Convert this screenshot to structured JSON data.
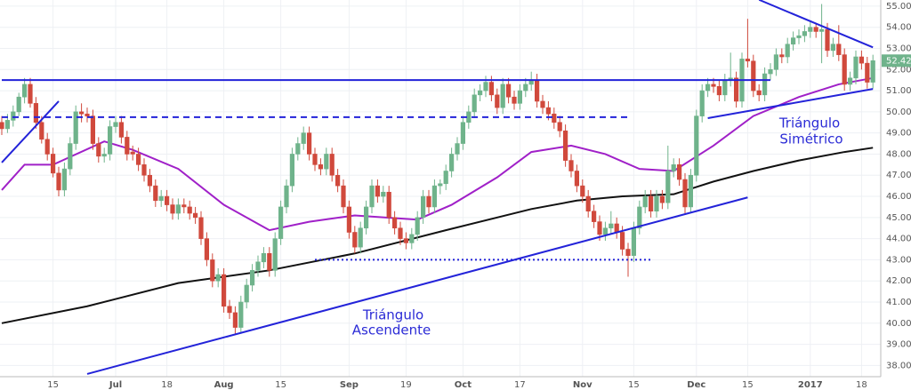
{
  "chart_data": {
    "type": "candlestick",
    "categories": [
      null,
      null,
      null,
      null,
      null,
      null,
      null,
      null,
      null,
      "15",
      null,
      null,
      null,
      null,
      null,
      null,
      null,
      null,
      null,
      null,
      "Jul",
      null,
      null,
      null,
      null,
      null,
      null,
      null,
      null,
      "18",
      null,
      null,
      null,
      null,
      null,
      null,
      null,
      null,
      null,
      "Aug",
      null,
      null,
      null,
      null,
      null,
      null,
      null,
      null,
      null,
      "15",
      null,
      null,
      null,
      null,
      null,
      null,
      null,
      null,
      null,
      null,
      null,
      "Sep",
      null,
      null,
      null,
      null,
      null,
      null,
      null,
      null,
      null,
      "19",
      null,
      null,
      null,
      null,
      null,
      null,
      null,
      null,
      null,
      "Oct",
      null,
      null,
      null,
      null,
      null,
      null,
      null,
      null,
      null,
      "17",
      null,
      null,
      null,
      null,
      null,
      null,
      null,
      null,
      null,
      null,
      "Nov",
      null,
      null,
      null,
      null,
      null,
      null,
      null,
      null,
      "15",
      null,
      null,
      null,
      null,
      null,
      null,
      null,
      null,
      null,
      null,
      "Dec",
      null,
      null,
      null,
      null,
      null,
      null,
      null,
      null,
      "15",
      null,
      null,
      null,
      null,
      null,
      null,
      null,
      null,
      null,
      null,
      "2017",
      null,
      null,
      null,
      null,
      null,
      null,
      null,
      null,
      "18",
      null,
      null
    ],
    "open": [
      49.5,
      49.2,
      49.6,
      50,
      50.7,
      51.3,
      50.4,
      49.5,
      48.7,
      48,
      47.1,
      46.3,
      47.3,
      48.5,
      50,
      49.9,
      49.8,
      48.5,
      47.9,
      48,
      49.3,
      49.5,
      48.8,
      48.1,
      48,
      47.5,
      47,
      46.5,
      45.8,
      46,
      45.6,
      45.2,
      45.6,
      45.5,
      45.2,
      45,
      44,
      43,
      42,
      42.3,
      40.8,
      40.5,
      39.8,
      41,
      41.8,
      42.5,
      42.9,
      43.3,
      42.5,
      44,
      45.5,
      46.5,
      48,
      48.5,
      49,
      48,
      47.5,
      47.3,
      48,
      47,
      46.5,
      45.5,
      44.3,
      43.6,
      44.5,
      45.5,
      46.5,
      46,
      46.2,
      45,
      44.5,
      44,
      43.8,
      44.2,
      45,
      46,
      45.5,
      46.5,
      46.6,
      47.2,
      48,
      48.5,
      49.5,
      50,
      50.8,
      51,
      51.4,
      50.8,
      50.2,
      51.3,
      50.7,
      50.4,
      51,
      51.3,
      51.5,
      50.5,
      50.2,
      49.9,
      49.5,
      49.1,
      47.7,
      47.2,
      46.5,
      46,
      45.3,
      44.8,
      44.2,
      44.5,
      44.7,
      44.3,
      43.5,
      43.2,
      44.5,
      45.5,
      46,
      45.3,
      46,
      45.7,
      47.2,
      47.5,
      46.8,
      45.5,
      47,
      49.8,
      51,
      51.3,
      51.2,
      50.8,
      51.5,
      51.6,
      50.5,
      52.5,
      52.4,
      51,
      50.8,
      51.8,
      52,
      52.7,
      52.6,
      53.2,
      53.5,
      53.6,
      53.8,
      54,
      53.8,
      53.9,
      52.9,
      53.2,
      52.7,
      51.3,
      51.6,
      52.6,
      52.3,
      51.4
    ],
    "high": [
      49.8,
      49.9,
      50.3,
      50.9,
      51.6,
      51.6,
      50.7,
      49.8,
      49,
      48.3,
      47.4,
      47.6,
      48.8,
      50.3,
      50.4,
      50.2,
      50.1,
      48.8,
      48.3,
      49.6,
      49.8,
      49.8,
      49.1,
      48.4,
      48.3,
      47.8,
      47.3,
      46.8,
      46.3,
      46.3,
      45.9,
      45.9,
      45.9,
      45.8,
      45.5,
      45.3,
      44.3,
      43.3,
      42.6,
      42.6,
      41.1,
      40.8,
      41.3,
      42.1,
      42.8,
      43.2,
      43.6,
      43.6,
      44.3,
      45.8,
      46.8,
      48.3,
      48.8,
      49.3,
      49.3,
      48.3,
      47.8,
      48.3,
      48.3,
      47.3,
      46.8,
      45.8,
      44.6,
      44.8,
      45.8,
      46.8,
      46.8,
      46.5,
      46.5,
      45.3,
      44.8,
      44.3,
      44.5,
      45.3,
      46.3,
      46.3,
      46.8,
      46.8,
      47.5,
      48.3,
      48.8,
      49.8,
      50.3,
      51.1,
      51.3,
      51.7,
      51.7,
      51.1,
      51.6,
      51.6,
      51,
      51.3,
      51.6,
      51.9,
      51.8,
      50.8,
      50.5,
      50.2,
      49.8,
      49.4,
      48,
      47.5,
      46.8,
      46.3,
      45.6,
      45.1,
      44.8,
      45.3,
      45,
      44.6,
      43.8,
      44.8,
      45.8,
      46.3,
      46.3,
      46.3,
      46.3,
      48.4,
      47.8,
      47.8,
      47.1,
      47.3,
      50.1,
      51.3,
      51.6,
      51.6,
      51.5,
      51.8,
      52.8,
      51.9,
      52.8,
      54.4,
      52.7,
      51.3,
      52.1,
      52.3,
      53,
      53,
      53.5,
      53.8,
      53.9,
      54.1,
      54.3,
      54.2,
      55.1,
      54.2,
      53.5,
      54.1,
      53,
      51.9,
      52.9,
      52.9,
      52.6,
      52.7
    ],
    "low": [
      48.9,
      49,
      49.3,
      49.8,
      50.4,
      50.2,
      49.2,
      48.5,
      47.7,
      46.9,
      46,
      46,
      47,
      48.2,
      49.5,
      49.5,
      48.2,
      47.6,
      47.6,
      47.7,
      49,
      48.5,
      47.7,
      47.7,
      47.2,
      46.7,
      46.2,
      45.5,
      45.5,
      45.3,
      44.9,
      44.9,
      45.2,
      44.9,
      44.7,
      43.7,
      42.7,
      41.7,
      41.7,
      40.5,
      40.2,
      39.5,
      39.5,
      40.7,
      41.5,
      42.2,
      42.6,
      42.2,
      42.2,
      43.7,
      45.2,
      46.2,
      47.7,
      48.2,
      47.7,
      47.2,
      47,
      47,
      46.7,
      46.2,
      45.2,
      44,
      43.3,
      43.3,
      44.2,
      45.2,
      45.7,
      45.7,
      44.7,
      44.2,
      43.7,
      43.5,
      43.5,
      43.9,
      44.7,
      45.2,
      45.2,
      46.1,
      46.3,
      46.9,
      47.7,
      48.2,
      49.2,
      49.7,
      50.5,
      50.7,
      50.5,
      49.9,
      49.9,
      50.4,
      50.1,
      50.1,
      50.7,
      51,
      50.2,
      49.9,
      49.6,
      49.2,
      48.8,
      47.4,
      46.9,
      46.2,
      45.7,
      45,
      44.5,
      43.9,
      43.9,
      44.2,
      44,
      43.2,
      42.2,
      42.9,
      44.2,
      45.2,
      45,
      45,
      45.4,
      45.4,
      46.9,
      46.5,
      45.2,
      45.2,
      46.7,
      49.5,
      50.7,
      50.9,
      50.5,
      50.5,
      51.2,
      50.2,
      50.2,
      52.1,
      50.7,
      50.5,
      50.5,
      51.5,
      51.7,
      52.3,
      52.3,
      52.9,
      53.2,
      53.3,
      53.5,
      53.5,
      52.3,
      52.6,
      52.6,
      52.4,
      51,
      51,
      51.3,
      52,
      51.1,
      51.1
    ],
    "close": [
      49.2,
      49.6,
      50,
      50.7,
      51.3,
      50.4,
      49.5,
      48.7,
      48,
      47.1,
      46.3,
      47.3,
      48.5,
      50,
      49.9,
      49.8,
      48.5,
      47.9,
      48,
      49.3,
      49.5,
      48.8,
      48,
      48,
      47.5,
      47,
      46.5,
      45.8,
      46,
      45.6,
      45.2,
      45.6,
      45.5,
      45.2,
      45,
      44,
      43,
      42,
      42.3,
      40.8,
      40.5,
      39.8,
      41,
      41.8,
      42.5,
      42.9,
      43.3,
      42.5,
      44,
      45.5,
      46.5,
      48,
      48.5,
      49,
      48,
      47.5,
      47.3,
      48,
      47,
      46.5,
      45.5,
      44.3,
      43.6,
      44.5,
      45.5,
      46.5,
      46,
      46.2,
      45,
      44.5,
      44,
      43.8,
      44.2,
      45,
      46,
      45.5,
      46.5,
      46.6,
      47.2,
      48,
      48.5,
      49.5,
      50,
      50.8,
      51,
      51.4,
      50.8,
      50.2,
      51.3,
      50.7,
      50.4,
      51,
      51.3,
      51.5,
      50.5,
      50.2,
      49.9,
      49.5,
      49.1,
      47.7,
      47.2,
      46.5,
      46,
      45.3,
      44.8,
      44.2,
      44.5,
      44.7,
      44.3,
      43.5,
      43.2,
      44.5,
      45.5,
      46,
      45.3,
      46,
      45.7,
      47.2,
      47.5,
      46.8,
      45.5,
      47,
      49.8,
      51,
      51.3,
      51.2,
      50.8,
      51.5,
      51.6,
      50.5,
      52.5,
      52.4,
      51,
      50.8,
      51.8,
      52,
      52.7,
      52.6,
      53.2,
      53.5,
      53.6,
      53.8,
      54,
      53.8,
      53.9,
      52.9,
      53.2,
      52.7,
      51.3,
      51.6,
      52.6,
      52.3,
      51.4,
      52.42
    ],
    "up_color": "#6fb38b",
    "down_color": "#d0493c",
    "overlays": [
      {
        "color": "#a020c8",
        "x": [
          0,
          4,
          9,
          18,
          23,
          31,
          39,
          47,
          54,
          62,
          73,
          79,
          87,
          93,
          100,
          106,
          112,
          118,
          125,
          132,
          140,
          147,
          153
        ],
        "values": [
          46.3,
          47.5,
          47.5,
          48.6,
          48.2,
          47.3,
          45.6,
          44.4,
          44.8,
          45.1,
          44.9,
          45.6,
          46.9,
          48.1,
          48.4,
          48,
          47.3,
          47.2,
          48.4,
          49.8,
          50.7,
          51.3,
          51.6
        ]
      },
      {
        "color": "#111111",
        "x": [
          0,
          15,
          31,
          47,
          62,
          78,
          93,
          101,
          109,
          118,
          125,
          132,
          140,
          148,
          153
        ],
        "values": [
          40,
          40.8,
          41.9,
          42.5,
          43.3,
          44.4,
          45.4,
          45.8,
          46,
          46.1,
          46.7,
          47.2,
          47.7,
          48.1,
          48.3
        ]
      }
    ],
    "trendlines": [
      {
        "color": "#2323d9",
        "style": "solid",
        "x": [
          0,
          135
        ],
        "values": [
          51.5,
          51.5
        ]
      },
      {
        "color": "#2323d9",
        "style": "dashed",
        "x": [
          0,
          110
        ],
        "values": [
          49.75,
          49.75
        ]
      },
      {
        "color": "#2323d9",
        "style": "dotted",
        "x": [
          55,
          114
        ],
        "values": [
          43,
          43
        ]
      },
      {
        "color": "#2323d9",
        "style": "solid",
        "x": [
          15,
          131
        ],
        "values": [
          37.6,
          45.95
        ]
      },
      {
        "color": "#2323d9",
        "style": "solid",
        "x": [
          0,
          10
        ],
        "values": [
          47.6,
          50.5
        ]
      },
      {
        "color": "#2323d9",
        "style": "solid",
        "x": [
          133,
          153
        ],
        "values": [
          55.3,
          53.05
        ]
      },
      {
        "color": "#2323d9",
        "style": "solid",
        "x": [
          124,
          153
        ],
        "values": [
          49.7,
          51.08
        ]
      }
    ],
    "annotation_ascending": [
      "Triángulo",
      "Ascendente"
    ],
    "annotation_symmetric": [
      "Triángulo",
      "Simétrico"
    ],
    "ylim": [
      37.47,
      55.29
    ],
    "yticks": [
      {
        "value": 38,
        "label": "38.00"
      },
      {
        "value": 39,
        "label": "39.00"
      },
      {
        "value": 40,
        "label": "40.00"
      },
      {
        "value": 41,
        "label": "41.00"
      },
      {
        "value": 42,
        "label": "42.00"
      },
      {
        "value": 43,
        "label": "43.00"
      },
      {
        "value": 44,
        "label": "44.00"
      },
      {
        "value": 45,
        "label": "45.00"
      },
      {
        "value": 46,
        "label": "46.00"
      },
      {
        "value": 47,
        "label": "47.00"
      },
      {
        "value": 48,
        "label": "48.00"
      },
      {
        "value": 49,
        "label": "49.00"
      },
      {
        "value": 50,
        "label": "50.00"
      },
      {
        "value": 51,
        "label": "51.00"
      },
      {
        "value": 52,
        "label": "52.00"
      },
      {
        "value": 53,
        "label": "53.00"
      },
      {
        "value": 54,
        "label": "54.00"
      },
      {
        "value": 55,
        "label": "55.00"
      }
    ],
    "grid": true
  }
}
